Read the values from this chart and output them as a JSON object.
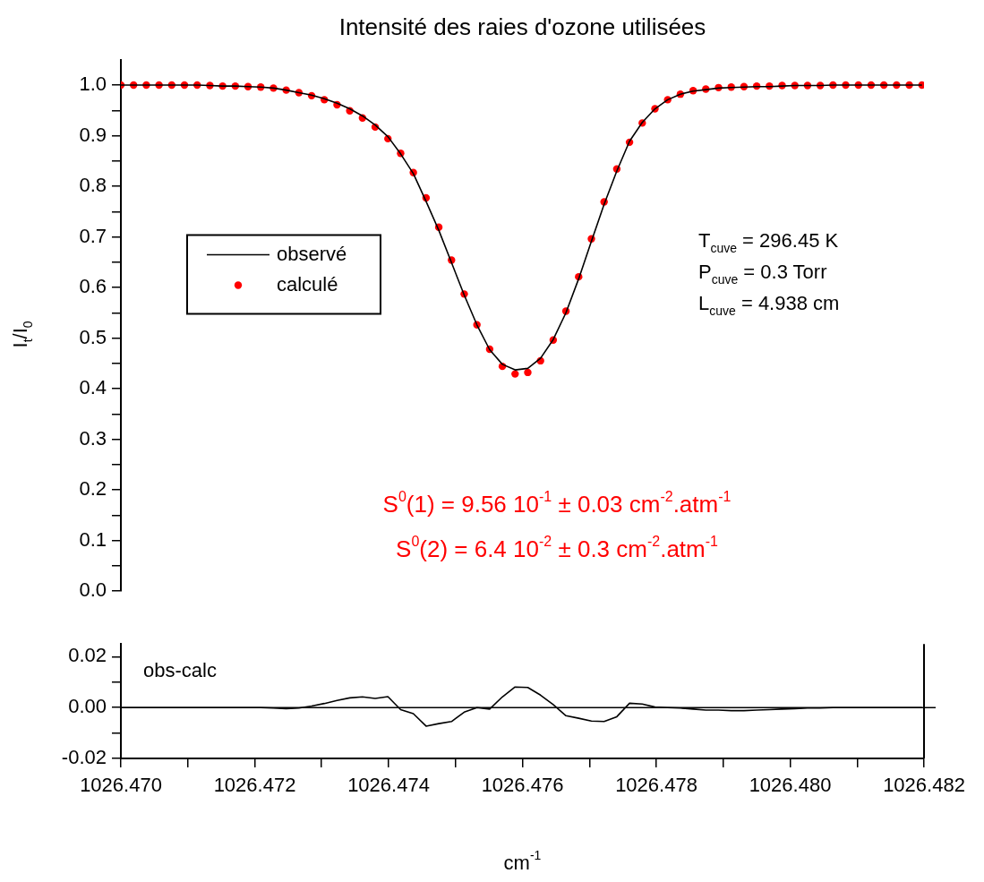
{
  "chart_data": [
    {
      "type": "line",
      "title": "Intensité des raies d'ozone utilisées",
      "ylabel": "I$_{t}$/I$_{0}$",
      "legend": "left",
      "tick_labels": "y",
      "x": [
        1026.47,
        1026.47019,
        1026.47038,
        1026.47057,
        1026.47076,
        1026.47095,
        1026.47114,
        1026.47133,
        1026.47152,
        1026.47171,
        1026.4719,
        1026.47209,
        1026.47228,
        1026.47247,
        1026.47266,
        1026.47285,
        1026.47304,
        1026.47323,
        1026.47342,
        1026.47361,
        1026.4738,
        1026.47399,
        1026.47418,
        1026.47437,
        1026.47456,
        1026.47475,
        1026.47494,
        1026.47513,
        1026.47532,
        1026.47551,
        1026.4757,
        1026.47589,
        1026.47608,
        1026.47627,
        1026.47646,
        1026.47665,
        1026.47684,
        1026.47703,
        1026.47722,
        1026.47741,
        1026.4776,
        1026.47779,
        1026.47798,
        1026.47817,
        1026.47836,
        1026.47855,
        1026.47874,
        1026.47893,
        1026.47912,
        1026.47931,
        1026.4795,
        1026.47969,
        1026.47988,
        1026.48007,
        1026.48026,
        1026.48045,
        1026.48064,
        1026.48083,
        1026.48102,
        1026.48121,
        1026.4814,
        1026.48159,
        1026.48178,
        1026.48197
      ],
      "xlim": [
        1026.47,
        1026.482
      ],
      "ylim": [
        0,
        1.05
      ],
      "yticks": [
        {
          "value": 0,
          "label": "0.0"
        },
        {
          "value": 0.05,
          "label": null
        },
        {
          "value": 0.1,
          "label": "0.1"
        },
        {
          "value": 0.15,
          "label": null
        },
        {
          "value": 0.2,
          "label": "0.2"
        },
        {
          "value": 0.25,
          "label": null
        },
        {
          "value": 0.3,
          "label": "0.3"
        },
        {
          "value": 0.35,
          "label": null
        },
        {
          "value": 0.4,
          "label": "0.4"
        },
        {
          "value": 0.45,
          "label": null
        },
        {
          "value": 0.5,
          "label": "0.5"
        },
        {
          "value": 0.55,
          "label": null
        },
        {
          "value": 0.6,
          "label": "0.6"
        },
        {
          "value": 0.65,
          "label": null
        },
        {
          "value": 0.7,
          "label": "0.7"
        },
        {
          "value": 0.75,
          "label": null
        },
        {
          "value": 0.8,
          "label": "0.8"
        },
        {
          "value": 0.85,
          "label": null
        },
        {
          "value": 0.9,
          "label": "0.9"
        },
        {
          "value": 0.95,
          "label": null
        },
        {
          "value": 1,
          "label": "1.0"
        }
      ],
      "series": [
        {
          "name": "observé",
          "type": "line",
          "color": "#000000",
          "marker": "none",
          "values": [
            1,
            1,
            1,
            1,
            1,
            1,
            1,
            0.999,
            0.998,
            0.998,
            0.997,
            0.996,
            0.994,
            0.99,
            0.985,
            0.98,
            0.973,
            0.964,
            0.953,
            0.939,
            0.921,
            0.898,
            0.864,
            0.825,
            0.77,
            0.713,
            0.649,
            0.585,
            0.526,
            0.477,
            0.448,
            0.437,
            0.44,
            0.46,
            0.497,
            0.55,
            0.617,
            0.691,
            0.764,
            0.83,
            0.889,
            0.926,
            0.953,
            0.971,
            0.982,
            0.988,
            0.991,
            0.994,
            0.995,
            0.996,
            0.997,
            0.997,
            0.998,
            0.999,
            0.999,
            0.999,
            1,
            1,
            1,
            1,
            1,
            1,
            1,
            1
          ]
        },
        {
          "name": "calculé",
          "type": "scatter",
          "color": "#ff0000",
          "marker": "circle",
          "values": [
            1,
            1,
            1,
            1,
            1,
            1,
            1,
            0.999,
            0.998,
            0.998,
            0.997,
            0.996,
            0.994,
            0.99,
            0.985,
            0.979,
            0.971,
            0.961,
            0.949,
            0.935,
            0.917,
            0.894,
            0.865,
            0.827,
            0.777,
            0.719,
            0.654,
            0.587,
            0.526,
            0.478,
            0.444,
            0.429,
            0.432,
            0.455,
            0.496,
            0.553,
            0.621,
            0.696,
            0.769,
            0.834,
            0.887,
            0.925,
            0.953,
            0.971,
            0.982,
            0.989,
            0.992,
            0.995,
            0.996,
            0.997,
            0.998,
            0.998,
            0.999,
            0.999,
            0.999,
            0.999,
            1,
            1,
            1,
            1,
            1,
            1,
            1,
            1
          ]
        }
      ],
      "annotations": [
        "T$_{cuve}$ = 296.45 K",
        "P$_{cuve}$ = 0.3 Torr",
        "L$_{cuve}$ = 4.938 cm",
        "S$^{0}$(1) = 9.56 10$^{-1}$ ± 0.03 cm$^{-2}$.atm$^{-1}$",
        "S$^{0}$(2) = 6.4 10$^{-2}$ ± 0.3 cm$^{-2}$.atm$^{-1}$"
      ]
    },
    {
      "type": "line",
      "xlabel": "cm$^{-1}$",
      "x": [
        1026.47,
        1026.47019,
        1026.47038,
        1026.47057,
        1026.47076,
        1026.47095,
        1026.47114,
        1026.47133,
        1026.47152,
        1026.47171,
        1026.4719,
        1026.47209,
        1026.47228,
        1026.47247,
        1026.47266,
        1026.47285,
        1026.47304,
        1026.47323,
        1026.47342,
        1026.47361,
        1026.4738,
        1026.47399,
        1026.47418,
        1026.47437,
        1026.47456,
        1026.47475,
        1026.47494,
        1026.47513,
        1026.47532,
        1026.47551,
        1026.4757,
        1026.47589,
        1026.47608,
        1026.47627,
        1026.47646,
        1026.47665,
        1026.47684,
        1026.47703,
        1026.47722,
        1026.47741,
        1026.4776,
        1026.47779,
        1026.47798,
        1026.47817,
        1026.47836,
        1026.47855,
        1026.47874,
        1026.47893,
        1026.47912,
        1026.47931,
        1026.4795,
        1026.47969,
        1026.47988,
        1026.48007,
        1026.48026,
        1026.48045,
        1026.48064,
        1026.48083,
        1026.48102,
        1026.48121,
        1026.4814,
        1026.48159,
        1026.48178,
        1026.48197
      ],
      "xlim": [
        1026.47,
        1026.482
      ],
      "ylim": [
        -0.02,
        0.025
      ],
      "xticks": [
        {
          "value": 1026.47,
          "label": "1026.470"
        },
        {
          "value": 1026.471,
          "label": null
        },
        {
          "value": 1026.472,
          "label": "1026.472"
        },
        {
          "value": 1026.473,
          "label": null
        },
        {
          "value": 1026.474,
          "label": "1026.474"
        },
        {
          "value": 1026.475,
          "label": null
        },
        {
          "value": 1026.476,
          "label": "1026.476"
        },
        {
          "value": 1026.477,
          "label": null
        },
        {
          "value": 1026.478,
          "label": "1026.478"
        },
        {
          "value": 1026.479,
          "label": null
        },
        {
          "value": 1026.48,
          "label": "1026.480"
        },
        {
          "value": 1026.481,
          "label": null
        },
        {
          "value": 1026.482,
          "label": "1026.482"
        }
      ],
      "yticks": [
        {
          "value": -0.02,
          "label": "-0.02"
        },
        {
          "value": -0.01,
          "label": null
        },
        {
          "value": 0,
          "label": "0.00"
        },
        {
          "value": 0.01,
          "label": null
        },
        {
          "value": 0.02,
          "label": "0.02"
        }
      ],
      "series": [
        {
          "color": "#000000",
          "values": [
            0,
            0,
            0,
            0,
            0,
            0,
            0,
            0,
            0,
            0,
            0,
            0,
            -0.0002,
            -0.0004,
            -0.0002,
            0.0006,
            0.0016,
            0.0028,
            0.0038,
            0.0042,
            0.0036,
            0.0043,
            -0.0008,
            -0.0024,
            -0.0073,
            -0.0063,
            -0.0055,
            -0.0018,
            0,
            -0.0006,
            0.0042,
            0.0081,
            0.0079,
            0.0049,
            0.0012,
            -0.0032,
            -0.0042,
            -0.0053,
            -0.0055,
            -0.0036,
            0.0017,
            0.0014,
            0.0002,
            0,
            -0.0002,
            -0.0006,
            -0.001,
            -0.001,
            -0.0012,
            -0.0012,
            -0.001,
            -0.0008,
            -0.0006,
            -0.0004,
            -0.0002,
            -0.0002,
            0,
            0,
            0,
            0,
            0,
            0,
            0,
            0
          ]
        }
      ],
      "ref_lines": [
        {
          "axis": "y",
          "value": 0
        }
      ],
      "annotations": [
        "obs-calc"
      ]
    }
  ]
}
